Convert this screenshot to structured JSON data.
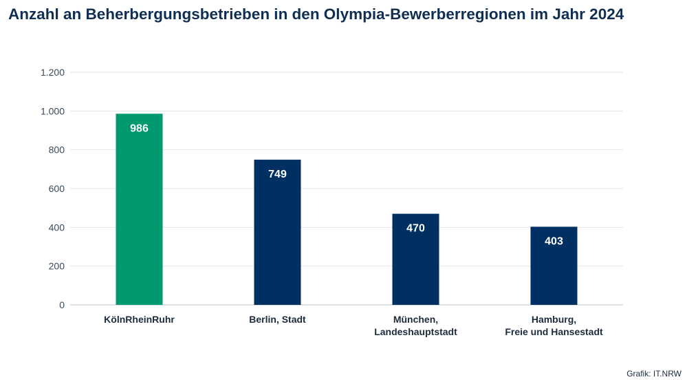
{
  "chart_data": {
    "type": "bar",
    "title": "Anzahl an Beherbergungsbetrieben in den Olympia-Bewerberregionen im Jahr 2024",
    "categories": [
      [
        "KölnRheinRuhr"
      ],
      [
        "Berlin, Stadt"
      ],
      [
        "München,",
        "Landeshauptstadt"
      ],
      [
        "Hamburg,",
        "Freie und Hansestadt"
      ]
    ],
    "values": [
      986,
      749,
      470,
      403
    ],
    "data_labels": [
      "986",
      "749",
      "470",
      "403"
    ],
    "colors": [
      "#009970",
      "#002f62",
      "#002f62",
      "#002f62"
    ],
    "ylim": [
      0,
      1200
    ],
    "yticks": [
      0,
      200,
      400,
      600,
      800,
      1000,
      1200
    ],
    "ytick_labels": [
      "0",
      "200",
      "400",
      "600",
      "800",
      "1.000",
      "1.200"
    ],
    "grid": true,
    "xlabel": "",
    "ylabel": ""
  },
  "source": "Grafik: IT.NRW"
}
